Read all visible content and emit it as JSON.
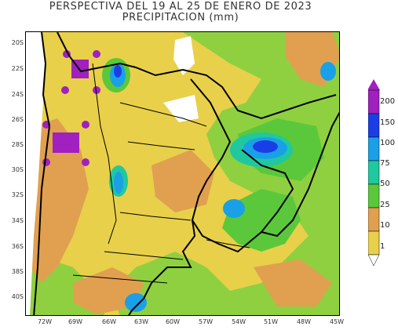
{
  "title": {
    "line1": "PERSPECTIVA DEL 19 AL 25 DE ENERO DE 2023",
    "line2": "PRECIPITACION (mm)"
  },
  "lat_ticks": [
    "20S",
    "22S",
    "24S",
    "26S",
    "28S",
    "30S",
    "32S",
    "34S",
    "36S",
    "38S",
    "40S"
  ],
  "lon_ticks": [
    "72W",
    "69W",
    "66W",
    "63W",
    "60W",
    "57W",
    "54W",
    "51W",
    "48W",
    "45W"
  ],
  "legend": {
    "labels": [
      "200",
      "150",
      "100",
      "75",
      "50",
      "25",
      "10",
      "1"
    ],
    "colors": {
      "200": "#a020c0",
      "150": "#1a3ee6",
      "100": "#1aa0e6",
      "75": "#20c8a0",
      "50": "#5ac83a",
      "25": "#e0a050",
      "10": "#e8d04a",
      "1": "#ffffff"
    }
  }
}
